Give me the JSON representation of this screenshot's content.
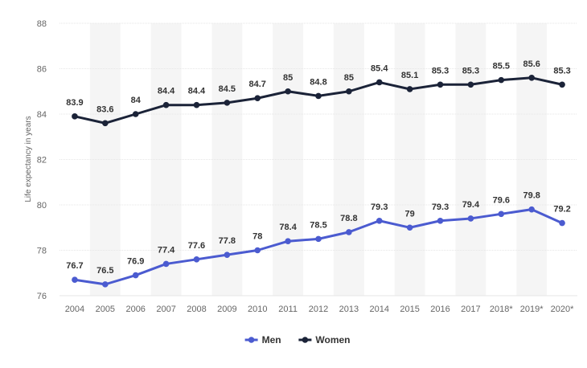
{
  "chart_data": {
    "type": "line",
    "categories": [
      "2004",
      "2005",
      "2006",
      "2007",
      "2008",
      "2009",
      "2010",
      "2011",
      "2012",
      "2013",
      "2014",
      "2015",
      "2016",
      "2017",
      "2018*",
      "2019*",
      "2020*"
    ],
    "series": [
      {
        "name": "Men",
        "color": "#4B5BD0",
        "values": [
          76.7,
          76.5,
          76.9,
          77.4,
          77.6,
          77.8,
          78,
          78.4,
          78.5,
          78.8,
          79.3,
          79,
          79.3,
          79.4,
          79.6,
          79.8,
          79.2
        ]
      },
      {
        "name": "Women",
        "color": "#1B2338",
        "values": [
          83.9,
          83.6,
          84,
          84.4,
          84.4,
          84.5,
          84.7,
          85,
          84.8,
          85,
          85.4,
          85.1,
          85.3,
          85.3,
          85.5,
          85.6,
          85.3
        ]
      }
    ],
    "ylabel": "Life expectancy in years",
    "xlabel": "",
    "ylim": [
      76,
      88
    ],
    "yticks": [
      76,
      78,
      80,
      82,
      84,
      86,
      88
    ],
    "grid": true,
    "legend": "bottom-center",
    "band_color": "#f5f5f5",
    "grid_color": "#e6e6e6"
  }
}
